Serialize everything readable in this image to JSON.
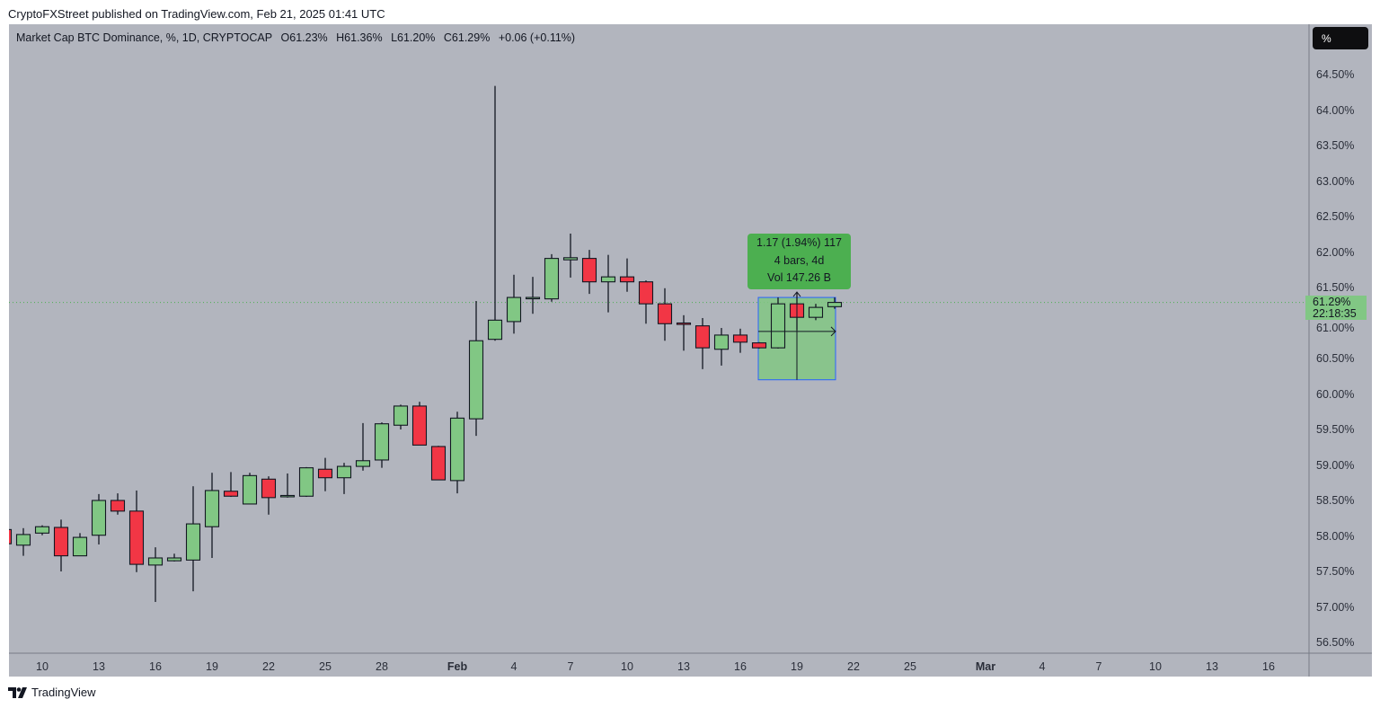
{
  "publish_line": "CryptoFXStreet published on TradingView.com, Feb 21, 2025 01:41 UTC",
  "legend": {
    "symbol": "Market Cap BTC Dominance, %, 1D, CRYPTOCAP",
    "open": "O61.23%",
    "high": "H61.36%",
    "low": "L61.20%",
    "close": "C61.29%",
    "change": "+0.06 (+0.11%)"
  },
  "unit_button": "%",
  "price_tag": {
    "value": "61.29%",
    "countdown": "22:18:35"
  },
  "measure": {
    "line1": "1.17 (1.94%) 117",
    "line2": "4 bars, 4d",
    "line3": "Vol 147.26 B",
    "from": 60.2,
    "to": 61.36,
    "start_index": 40,
    "end_index": 44
  },
  "logo_text": "TradingView",
  "colors": {
    "background": "#b2b5be",
    "up": "#81c784",
    "down": "#f23645",
    "measure_fill": "#81c784",
    "measure_border": "#2962ff",
    "tooltip": "#4caf50"
  },
  "chart_data": {
    "type": "candlestick",
    "title": "Market Cap BTC Dominance, %, 1D, CRYPTOCAP",
    "ylabel": "%",
    "ylim": [
      56.3,
      64.8
    ],
    "y_ticks": [
      "64.50%",
      "64.00%",
      "63.50%",
      "63.00%",
      "62.50%",
      "62.00%",
      "61.50%",
      "61.00%",
      "60.50%",
      "60.00%",
      "59.50%",
      "59.00%",
      "58.50%",
      "58.00%",
      "57.50%",
      "57.00%",
      "56.50%"
    ],
    "y_tick_values": [
      64.5,
      64,
      63.5,
      63,
      62.5,
      62,
      61.5,
      61,
      60.5,
      60,
      59.5,
      59,
      58.5,
      58,
      57.5,
      57,
      56.5
    ],
    "x_ticks": [
      {
        "label": "10",
        "index": 2
      },
      {
        "label": "13",
        "index": 5
      },
      {
        "label": "16",
        "index": 8
      },
      {
        "label": "19",
        "index": 11
      },
      {
        "label": "22",
        "index": 14
      },
      {
        "label": "25",
        "index": 17
      },
      {
        "label": "28",
        "index": 20
      },
      {
        "label": "Feb",
        "index": 24,
        "bold": true
      },
      {
        "label": "4",
        "index": 27
      },
      {
        "label": "7",
        "index": 30
      },
      {
        "label": "10",
        "index": 33
      },
      {
        "label": "13",
        "index": 36
      },
      {
        "label": "16",
        "index": 39
      },
      {
        "label": "19",
        "index": 42
      },
      {
        "label": "22",
        "index": 45
      },
      {
        "label": "25",
        "index": 48
      },
      {
        "label": "Mar",
        "index": 52,
        "bold": true
      },
      {
        "label": "4",
        "index": 55
      },
      {
        "label": "7",
        "index": 58
      },
      {
        "label": "10",
        "index": 61
      },
      {
        "label": "13",
        "index": 64
      },
      {
        "label": "16",
        "index": 67
      }
    ],
    "candles": [
      {
        "date": "Jan 8",
        "o": 58.09,
        "h": 58.12,
        "l": 57.87,
        "c": 57.89
      },
      {
        "date": "Jan 9",
        "o": 57.87,
        "h": 58.11,
        "l": 57.72,
        "c": 58.02
      },
      {
        "date": "Jan 10",
        "o": 58.04,
        "h": 58.15,
        "l": 58.01,
        "c": 58.13
      },
      {
        "date": "Jan 11",
        "o": 58.12,
        "h": 58.23,
        "l": 57.5,
        "c": 57.72
      },
      {
        "date": "Jan 12",
        "o": 57.72,
        "h": 58.04,
        "l": 57.72,
        "c": 57.98
      },
      {
        "date": "Jan 13",
        "o": 58.01,
        "h": 58.59,
        "l": 57.88,
        "c": 58.5
      },
      {
        "date": "Jan 14",
        "o": 58.5,
        "h": 58.6,
        "l": 58.3,
        "c": 58.35
      },
      {
        "date": "Jan 15",
        "o": 58.35,
        "h": 58.64,
        "l": 57.49,
        "c": 57.6
      },
      {
        "date": "Jan 16",
        "o": 57.59,
        "h": 57.84,
        "l": 57.07,
        "c": 57.69
      },
      {
        "date": "Jan 17",
        "o": 57.65,
        "h": 57.75,
        "l": 57.64,
        "c": 57.69
      },
      {
        "date": "Jan 18",
        "o": 57.66,
        "h": 58.7,
        "l": 57.22,
        "c": 58.17
      },
      {
        "date": "Jan 19",
        "o": 58.13,
        "h": 58.89,
        "l": 57.69,
        "c": 58.64
      },
      {
        "date": "Jan 20",
        "o": 58.63,
        "h": 58.9,
        "l": 58.55,
        "c": 58.56
      },
      {
        "date": "Jan 21",
        "o": 58.45,
        "h": 58.89,
        "l": 58.45,
        "c": 58.85
      },
      {
        "date": "Jan 22",
        "o": 58.8,
        "h": 58.84,
        "l": 58.3,
        "c": 58.54
      },
      {
        "date": "Jan 23",
        "o": 58.56,
        "h": 58.88,
        "l": 58.54,
        "c": 58.57
      },
      {
        "date": "Jan 24",
        "o": 58.56,
        "h": 58.97,
        "l": 58.55,
        "c": 58.96
      },
      {
        "date": "Jan 25",
        "o": 58.94,
        "h": 59.1,
        "l": 58.63,
        "c": 58.82
      },
      {
        "date": "Jan 26",
        "o": 58.82,
        "h": 59.03,
        "l": 58.59,
        "c": 58.98
      },
      {
        "date": "Jan 27",
        "o": 58.98,
        "h": 59.59,
        "l": 58.92,
        "c": 59.06
      },
      {
        "date": "Jan 28",
        "o": 59.07,
        "h": 59.6,
        "l": 58.96,
        "c": 59.58
      },
      {
        "date": "Jan 29",
        "o": 59.56,
        "h": 59.85,
        "l": 59.5,
        "c": 59.83
      },
      {
        "date": "Jan 30",
        "o": 59.83,
        "h": 59.89,
        "l": 59.28,
        "c": 59.28
      },
      {
        "date": "Jan 31",
        "o": 59.26,
        "h": 59.27,
        "l": 58.79,
        "c": 58.79
      },
      {
        "date": "Feb 1",
        "o": 58.78,
        "h": 59.75,
        "l": 58.6,
        "c": 59.66
      },
      {
        "date": "Feb 2",
        "o": 59.65,
        "h": 61.31,
        "l": 59.41,
        "c": 60.75
      },
      {
        "date": "Feb 3",
        "o": 60.77,
        "h": 64.34,
        "l": 60.75,
        "c": 61.04
      },
      {
        "date": "Feb 4",
        "o": 61.02,
        "h": 61.68,
        "l": 60.85,
        "c": 61.36
      },
      {
        "date": "Feb 5",
        "o": 61.36,
        "h": 61.65,
        "l": 61.13,
        "c": 61.36
      },
      {
        "date": "Feb 6",
        "o": 61.34,
        "h": 61.97,
        "l": 61.3,
        "c": 61.91
      },
      {
        "date": "Feb 7",
        "o": 61.89,
        "h": 62.26,
        "l": 61.64,
        "c": 61.92
      },
      {
        "date": "Feb 8",
        "o": 61.91,
        "h": 62.03,
        "l": 61.41,
        "c": 61.58
      },
      {
        "date": "Feb 9",
        "o": 61.58,
        "h": 61.96,
        "l": 61.15,
        "c": 61.65
      },
      {
        "date": "Feb 10",
        "o": 61.65,
        "h": 61.91,
        "l": 61.44,
        "c": 61.58
      },
      {
        "date": "Feb 11",
        "o": 61.58,
        "h": 61.6,
        "l": 60.99,
        "c": 61.27
      },
      {
        "date": "Feb 12",
        "o": 61.27,
        "h": 61.49,
        "l": 60.75,
        "c": 60.99
      },
      {
        "date": "Feb 13",
        "o": 61.0,
        "h": 61.11,
        "l": 60.61,
        "c": 60.98
      },
      {
        "date": "Feb 14",
        "o": 60.96,
        "h": 61.07,
        "l": 60.35,
        "c": 60.65
      },
      {
        "date": "Feb 15",
        "o": 60.63,
        "h": 60.93,
        "l": 60.4,
        "c": 60.83
      },
      {
        "date": "Feb 16",
        "o": 60.83,
        "h": 60.92,
        "l": 60.58,
        "c": 60.73
      },
      {
        "date": "Feb 17",
        "o": 60.72,
        "h": 60.73,
        "l": 60.64,
        "c": 60.65
      },
      {
        "date": "Feb 18",
        "o": 60.65,
        "h": 61.36,
        "l": 60.64,
        "c": 61.27
      },
      {
        "date": "Feb 19",
        "o": 61.27,
        "h": 61.42,
        "l": 60.9,
        "c": 61.08
      },
      {
        "date": "Feb 20",
        "o": 61.08,
        "h": 61.27,
        "l": 61.04,
        "c": 61.22
      },
      {
        "date": "Feb 21",
        "o": 61.23,
        "h": 61.36,
        "l": 61.2,
        "c": 61.29
      }
    ],
    "last_price": 61.29
  }
}
